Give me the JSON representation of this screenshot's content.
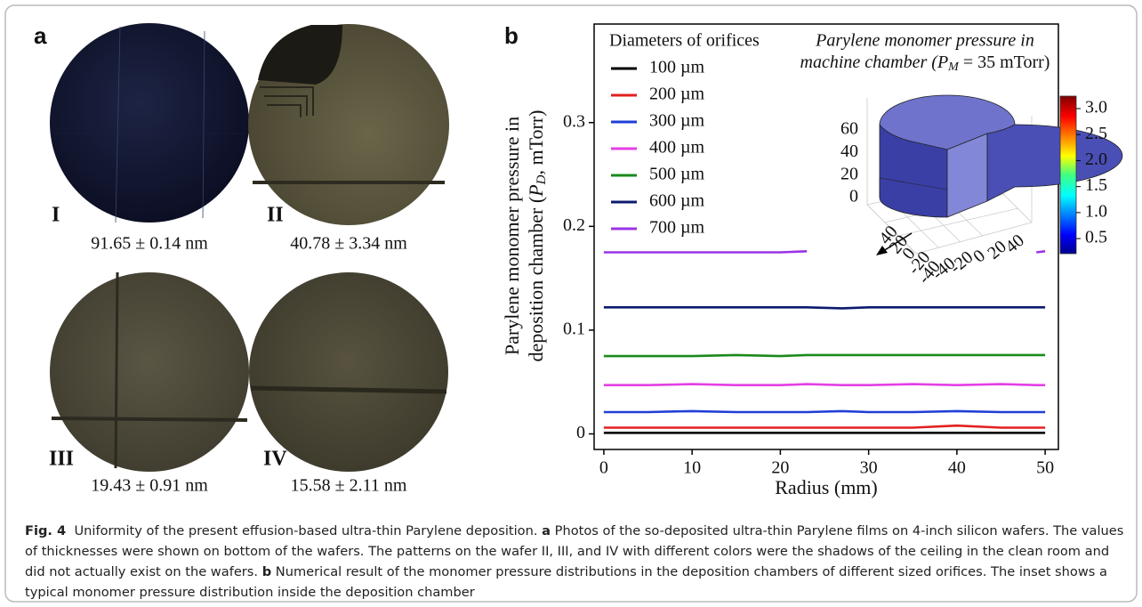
{
  "panel_a": {
    "label": "a",
    "wafers": [
      {
        "numeral": "I",
        "thickness": "91.65 ± 0.14 nm"
      },
      {
        "numeral": "II",
        "thickness": "40.78 ± 3.34 nm"
      },
      {
        "numeral": "III",
        "thickness": "19.43 ± 0.91 nm"
      },
      {
        "numeral": "IV",
        "thickness": "15.58 ± 2.11 nm"
      }
    ]
  },
  "chart_data": {
    "type": "line",
    "panel_label": "b",
    "x_label": "Radius (mm)",
    "y_label": {
      "line1": "Parylene monomer pressure in",
      "line2_pre": "deposition chamber (",
      "symbol": "P",
      "subscript": "D",
      "line2_post": ", mTorr)"
    },
    "legend_title": "Diameters of orifices",
    "x": [
      0,
      5,
      10,
      15,
      20,
      23,
      27,
      30,
      35,
      40,
      45,
      49,
      50
    ],
    "series": [
      {
        "name": "100 µm",
        "color": "#000000",
        "values": [
          0.001,
          0.001,
          0.001,
          0.001,
          0.001,
          0.001,
          0.001,
          0.001,
          0.001,
          0.001,
          0.001,
          0.001,
          0.001
        ]
      },
      {
        "name": "200 µm",
        "color": "#e32020",
        "values": [
          0.006,
          0.006,
          0.006,
          0.006,
          0.006,
          0.006,
          0.006,
          0.006,
          0.006,
          0.008,
          0.006,
          0.006,
          0.006
        ]
      },
      {
        "name": "300 µm",
        "color": "#1f3fd6",
        "values": [
          0.021,
          0.021,
          0.022,
          0.021,
          0.021,
          0.021,
          0.022,
          0.021,
          0.021,
          0.022,
          0.021,
          0.021,
          0.021
        ]
      },
      {
        "name": "400 µm",
        "color": "#e43fe4",
        "values": [
          0.047,
          0.047,
          0.048,
          0.047,
          0.047,
          0.048,
          0.047,
          0.047,
          0.048,
          0.047,
          0.048,
          0.047,
          0.047
        ]
      },
      {
        "name": "500 µm",
        "color": "#1b8a1b",
        "values": [
          0.075,
          0.075,
          0.075,
          0.076,
          0.075,
          0.076,
          0.076,
          0.076,
          0.076,
          0.076,
          0.076,
          0.076,
          0.076
        ]
      },
      {
        "name": "600 µm",
        "color": "#0c1a6e",
        "values": [
          0.122,
          0.122,
          0.122,
          0.122,
          0.122,
          0.122,
          0.121,
          0.122,
          0.122,
          0.122,
          0.122,
          0.122,
          0.122
        ]
      },
      {
        "name": "700 µm",
        "color": "#9b33e6",
        "values": [
          0.175,
          0.175,
          0.175,
          0.175,
          0.175,
          0.176,
          null,
          null,
          null,
          null,
          null,
          0.175,
          0.176
        ]
      }
    ],
    "xlim": [
      -1.1,
      51.5
    ],
    "xticks": [
      0,
      10,
      20,
      30,
      40,
      50
    ],
    "ylim": [
      -0.015,
      0.395
    ],
    "yticks": [
      0,
      0.1,
      0.2,
      0.3
    ],
    "inset": {
      "title": {
        "line1": "Parylene monomer pressure in",
        "line2_pre": "machine chamber (",
        "symbol": "P",
        "subscript": "M",
        "line2_post": " = 35 mTorr)"
      },
      "zticks": [
        0,
        20,
        40,
        60
      ],
      "yticks": [
        40,
        20,
        0,
        -20,
        -40
      ],
      "xticks": [
        -40,
        -20,
        0,
        20,
        40
      ],
      "colorbar": {
        "lim": [
          0.21,
          3.24
        ],
        "ticks": [
          0.5,
          {
            "value": 1,
            "label": "1.0"
          },
          1.5,
          {
            "value": 2,
            "label": "2.0"
          },
          2.5,
          {
            "value": 3,
            "label": "3.0"
          }
        ]
      }
    }
  },
  "caption": {
    "label": "Fig. 4",
    "intro": "Uniformity of the present effusion-based ultra-thin Parylene deposition.",
    "a_label": "a",
    "a_text": "Photos of the so-deposited ultra-thin Parylene films on 4-inch silicon wafers. The values of thicknesses were shown on bottom of the wafers. The patterns on the wafer II, III, and IV with different colors were the shadows of the ceiling in the clean room and did not actually exist on the wafers.",
    "b_label": "b",
    "b_text": "Numerical result of the monomer pressure distributions in the deposition chambers of different sized orifices. The inset shows a typical monomer pressure distribution inside the deposition chamber"
  }
}
